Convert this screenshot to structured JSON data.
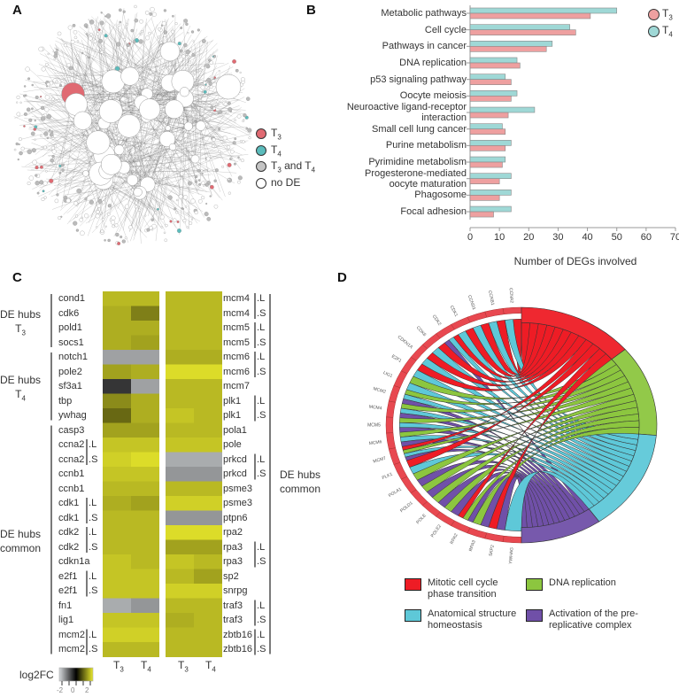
{
  "panels": {
    "a": "A",
    "b": "B",
    "c": "C",
    "d": "D"
  },
  "network_legend": [
    {
      "label": "T",
      "sub": "3",
      "color": "#e06a72"
    },
    {
      "label": "T",
      "sub": "4",
      "color": "#5bbcbc"
    },
    {
      "label": "T",
      "sub": "3",
      "label2": " and T",
      "sub2": "4",
      "color": "#c4c4c4"
    },
    {
      "label": "no DE",
      "color": "#ffffff"
    }
  ],
  "chart_data": [
    {
      "type": "bar",
      "orientation": "horizontal",
      "categories": [
        "Metabolic pathways",
        "Cell cycle",
        "Pathways in cancer",
        "DNA replication",
        "p53 signaling pathway",
        "Oocyte meiosis",
        "Neuroactive ligand-receptor interaction",
        "Small cell lung cancer",
        "Purine metabolism",
        "Pyrimidine metabolism",
        "Progesterone-mediated oocyte maturation",
        "Phagosome",
        "Focal adhesion"
      ],
      "category_lines": [
        [
          "Metabolic pathways"
        ],
        [
          "Cell cycle"
        ],
        [
          "Pathways in cancer"
        ],
        [
          "DNA replication"
        ],
        [
          "p53 signaling pathway"
        ],
        [
          "Oocyte meiosis"
        ],
        [
          "Neuroactive ligand-receptor",
          "interaction"
        ],
        [
          "Small cell lung cancer"
        ],
        [
          "Purine metabolism"
        ],
        [
          "Pyrimidine metabolism"
        ],
        [
          "Progesterone-mediated",
          "oocyte maturation"
        ],
        [
          "Phagosome"
        ],
        [
          "Focal adhesion"
        ]
      ],
      "series": [
        {
          "name": "T",
          "sub": "4",
          "color": "#9fd8d6",
          "values": [
            50,
            34,
            28,
            16,
            12,
            16,
            22,
            11,
            14,
            12,
            14,
            14,
            14
          ]
        },
        {
          "name": "T",
          "sub": "3",
          "color": "#eea0a0",
          "values": [
            41,
            36,
            26,
            17,
            14,
            14,
            13,
            12,
            12,
            11,
            10,
            10,
            8
          ]
        }
      ],
      "legend_order": [
        1,
        0
      ],
      "xlabel": "Number of DEGs involved",
      "xlim": [
        0,
        70
      ],
      "xticks": [
        "0",
        "10",
        "20",
        "30",
        "40",
        "50",
        "60",
        "70"
      ],
      "legend": "top-right"
    },
    {
      "type": "heatmap",
      "columns": [
        {
          "label": "T",
          "sub": "3"
        },
        {
          "label": "T",
          "sub": "4"
        }
      ],
      "colorbar": {
        "label": "log2FC",
        "ticks": [
          "-2",
          "0",
          "2"
        ],
        "range": [
          -2,
          2
        ],
        "low": "#d4d7da",
        "mid": "#000000",
        "high": "#e8e82c"
      },
      "groups_left": [
        {
          "line1": "DE hubs",
          "line2": "T",
          "sub": "3"
        },
        {
          "line1": "DE hubs",
          "line2": "T",
          "sub": "4"
        },
        {
          "line1": "DE hubs",
          "line2": "common"
        }
      ],
      "group_right": {
        "line1": "DE hubs",
        "line2": "common"
      },
      "left_rows": [
        {
          "gene": "cond1",
          "t3": 1.6,
          "t4": 1.6
        },
        {
          "gene": "cdk6",
          "t3": 1.5,
          "t4": 1.1
        },
        {
          "gene": "pold1",
          "t3": 1.5,
          "t4": 1.5
        },
        {
          "gene": "socs1",
          "t3": 1.5,
          "t4": 1.4
        },
        {
          "gene": "notch1",
          "t3": -1.5,
          "t4": -1.5
        },
        {
          "gene": "pole2",
          "t3": 1.4,
          "t4": 1.5
        },
        {
          "gene": "sf3a1",
          "t3": -0.5,
          "t4": -1.5
        },
        {
          "gene": "tbp",
          "t3": 1.2,
          "t4": 1.5
        },
        {
          "gene": "ywhag",
          "t3": 0.9,
          "t4": 1.5
        },
        {
          "gene": "casp3",
          "t3": 1.4,
          "t4": 1.4
        },
        {
          "gene": "ccna2",
          "suffix": "L",
          "t3": 1.7,
          "t4": 1.7
        },
        {
          "gene": "ccna2",
          "suffix": "S",
          "t3": 1.8,
          "t4": 1.9
        },
        {
          "gene": "ccnb1",
          "t3": 1.7,
          "t4": 1.7
        },
        {
          "gene": "ccnb1",
          "t3": 1.6,
          "t4": 1.6
        },
        {
          "gene": "cdk1",
          "suffix": "L",
          "t3": 1.5,
          "t4": 1.4
        },
        {
          "gene": "cdk1",
          "suffix": "S",
          "t3": 1.6,
          "t4": 1.6
        },
        {
          "gene": "cdk2",
          "suffix": "L",
          "t3": 1.6,
          "t4": 1.6
        },
        {
          "gene": "cdk2",
          "suffix": "S",
          "t3": 1.6,
          "t4": 1.6
        },
        {
          "gene": "cdkn1a",
          "t3": 1.7,
          "t4": 1.6
        },
        {
          "gene": "e2f1",
          "suffix": "L",
          "t3": 1.7,
          "t4": 1.7
        },
        {
          "gene": "e2f1",
          "suffix": "S",
          "t3": 1.7,
          "t4": 1.7
        },
        {
          "gene": "fn1",
          "t3": -1.6,
          "t4": -1.4
        },
        {
          "gene": "lig1",
          "t3": 1.7,
          "t4": 1.7
        },
        {
          "gene": "mcm2",
          "suffix": "L",
          "t3": 1.8,
          "t4": 1.8
        },
        {
          "gene": "mcm2",
          "suffix": "S",
          "t3": 1.6,
          "t4": 1.6
        }
      ],
      "right_rows": [
        {
          "gene": "mcm4",
          "suffix": "L",
          "t3": 1.6,
          "t4": 1.6
        },
        {
          "gene": "mcm4",
          "suffix": "S",
          "t3": 1.6,
          "t4": 1.6
        },
        {
          "gene": "mcm5",
          "suffix": "L",
          "t3": 1.6,
          "t4": 1.6
        },
        {
          "gene": "mcm5",
          "suffix": "S",
          "t3": 1.6,
          "t4": 1.6
        },
        {
          "gene": "mcm6",
          "suffix": "L",
          "t3": 1.5,
          "t4": 1.5
        },
        {
          "gene": "mcm6",
          "suffix": "S",
          "t3": 1.9,
          "t4": 1.9
        },
        {
          "gene": "mcm7",
          "t3": 1.6,
          "t4": 1.6
        },
        {
          "gene": "plk1",
          "suffix": "L",
          "t3": 1.6,
          "t4": 1.6
        },
        {
          "gene": "plk1",
          "suffix": "S",
          "t3": 1.7,
          "t4": 1.6
        },
        {
          "gene": "pola1",
          "t3": 1.6,
          "t4": 1.6
        },
        {
          "gene": "pole",
          "t3": 1.7,
          "t4": 1.7
        },
        {
          "gene": "prkcd",
          "suffix": "L",
          "t3": -1.6,
          "t4": -1.6
        },
        {
          "gene": "prkcd",
          "suffix": "S",
          "t3": -1.4,
          "t4": -1.4
        },
        {
          "gene": "psme3",
          "t3": 1.6,
          "t4": 1.6
        },
        {
          "gene": "psme3",
          "t3": 1.8,
          "t4": 1.8
        },
        {
          "gene": "ptpn6",
          "t3": -1.4,
          "t4": -1.4
        },
        {
          "gene": "rpa2",
          "t3": 1.9,
          "t4": 1.9
        },
        {
          "gene": "rpa3",
          "suffix": "L",
          "t3": 1.4,
          "t4": 1.4
        },
        {
          "gene": "rpa3",
          "suffix": "S",
          "t3": 1.7,
          "t4": 1.6
        },
        {
          "gene": "sp2",
          "t3": 1.6,
          "t4": 1.4
        },
        {
          "gene": "snrpg",
          "t3": 1.8,
          "t4": 1.8
        },
        {
          "gene": "traf3",
          "suffix": "L",
          "t3": 1.6,
          "t4": 1.6
        },
        {
          "gene": "traf3",
          "suffix": "S",
          "t3": 1.5,
          "t4": 1.6
        },
        {
          "gene": "zbtb16",
          "suffix": "L",
          "t3": 1.6,
          "t4": 1.6
        },
        {
          "gene": "zbtb16",
          "suffix": "S",
          "t3": 1.6,
          "t4": 1.6
        }
      ]
    },
    {
      "type": "chord",
      "genes": [
        "CCNA2",
        "CCNB1",
        "CCND1",
        "CDK1",
        "CDK2",
        "CDK6",
        "CDKN1A",
        "E2F1",
        "LIG1",
        "MCM2",
        "MCM4",
        "MCM5",
        "MCM6",
        "MCM7",
        "PLK1",
        "POLA1",
        "POLD1",
        "POLE",
        "POLE2",
        "RPA2",
        "RPA3",
        "SKP2",
        "YWHAG"
      ],
      "terms": [
        {
          "key": "M",
          "lines": [
            "Mitotic cell cycle",
            "phase transition"
          ],
          "color": "#ee1c25"
        },
        {
          "key": "D",
          "lines": [
            "DNA replication"
          ],
          "color": "#8cc63f"
        },
        {
          "key": "A",
          "lines": [
            "Anatomical structure",
            "homeostasis"
          ],
          "color": "#5ec8d8"
        },
        {
          "key": "P",
          "lines": [
            "Activation of the pre-",
            "replicative complex"
          ],
          "color": "#7050a8"
        }
      ],
      "links": {
        "CCNA2": [
          "M",
          "A"
        ],
        "CCNB1": [
          "M",
          "A"
        ],
        "CCND1": [
          "M",
          "A"
        ],
        "CDK1": [
          "M",
          "A"
        ],
        "CDK2": [
          "M",
          "A",
          "P"
        ],
        "CDK6": [
          "M",
          "A"
        ],
        "CDKN1A": [
          "M",
          "A"
        ],
        "E2F1": [
          "M",
          "A"
        ],
        "LIG1": [
          "D",
          "A"
        ],
        "MCM2": [
          "D",
          "A",
          "P"
        ],
        "MCM4": [
          "D",
          "A",
          "P"
        ],
        "MCM5": [
          "D",
          "A",
          "P"
        ],
        "MCM6": [
          "D",
          "A",
          "P"
        ],
        "MCM7": [
          "M",
          "D",
          "A",
          "P"
        ],
        "PLK1": [
          "M",
          "A"
        ],
        "POLA1": [
          "D",
          "P"
        ],
        "POLD1": [
          "D",
          "P"
        ],
        "POLE": [
          "D",
          "P"
        ],
        "POLE2": [
          "D",
          "P"
        ],
        "RPA2": [
          "M",
          "D",
          "P"
        ],
        "RPA3": [
          "D",
          "P"
        ],
        "SKP2": [
          "M",
          "P"
        ],
        "YWHAG": [
          "A"
        ]
      }
    }
  ]
}
